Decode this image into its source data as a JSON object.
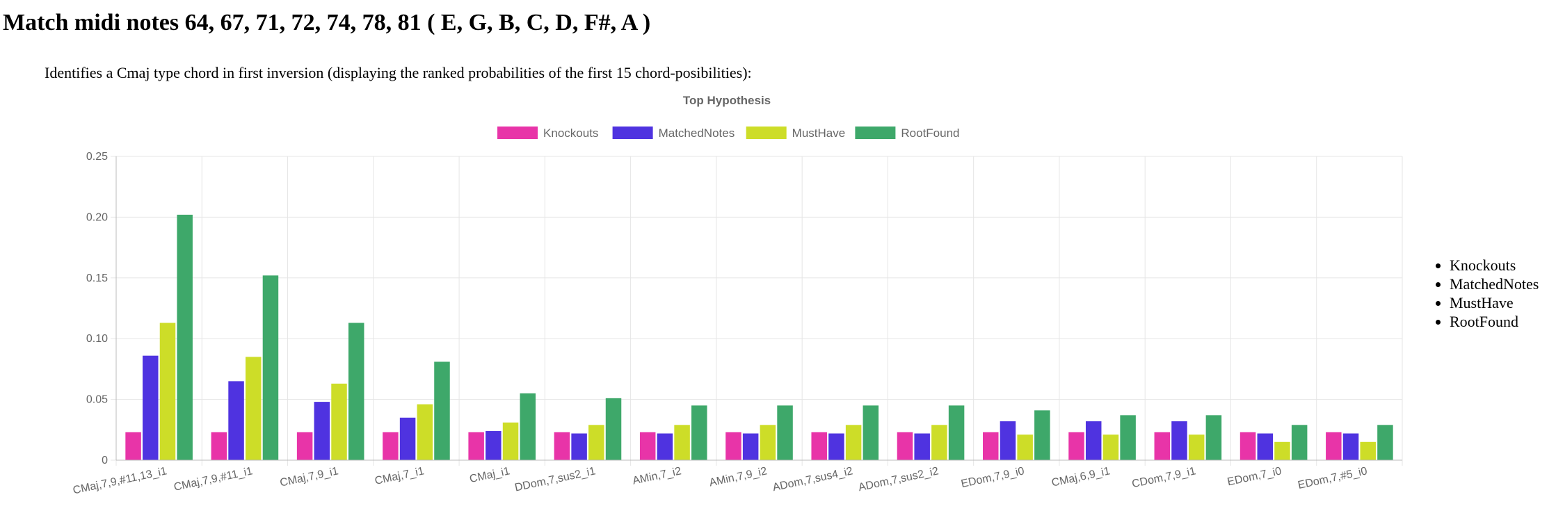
{
  "page": {
    "heading": "Match midi notes 64, 67, 71, 72, 74, 78, 81 ( E, G, B, C, D, F#, A )",
    "description": "Identifies a Cmaj type chord in first inversion (displaying the ranked probabilities of the first 15 chord-posibilities):",
    "legend_list": [
      "Knockouts",
      "MatchedNotes",
      "MustHave",
      "RootFound"
    ]
  },
  "chart_data": {
    "type": "bar",
    "title": "Top Hypothesis",
    "xlabel": "",
    "ylabel": "",
    "ylim": [
      0,
      0.25
    ],
    "yticks": [
      "0",
      "0.05",
      "0.10",
      "0.15",
      "0.20",
      "0.25"
    ],
    "grid": true,
    "legend_position": "top-center",
    "categories": [
      "CMaj,7,9,#11,13_i1",
      "CMaj,7,9,#11_i1",
      "CMaj,7,9_i1",
      "CMaj,7_i1",
      "CMaj_i1",
      "DDom,7,sus2_i1",
      "AMin,7_i2",
      "AMin,7,9_i2",
      "ADom,7,sus4_i2",
      "ADom,7,sus2_i2",
      "EDom,7,9_i0",
      "CMaj,6,9_i1",
      "CDom,7,9_i1",
      "EDom,7_i0",
      "EDom,7,#5_i0"
    ],
    "series": [
      {
        "name": "Knockouts",
        "color": "#e834a8",
        "values": [
          0.023,
          0.023,
          0.023,
          0.023,
          0.023,
          0.023,
          0.023,
          0.023,
          0.023,
          0.023,
          0.023,
          0.023,
          0.023,
          0.023,
          0.023
        ]
      },
      {
        "name": "MatchedNotes",
        "color": "#4f33e0",
        "values": [
          0.086,
          0.065,
          0.048,
          0.035,
          0.024,
          0.022,
          0.022,
          0.022,
          0.022,
          0.022,
          0.032,
          0.032,
          0.032,
          0.022,
          0.022
        ]
      },
      {
        "name": "MustHave",
        "color": "#cddd28",
        "values": [
          0.113,
          0.085,
          0.063,
          0.046,
          0.031,
          0.029,
          0.029,
          0.029,
          0.029,
          0.029,
          0.021,
          0.021,
          0.021,
          0.015,
          0.015
        ]
      },
      {
        "name": "RootFound",
        "color": "#3ea86a",
        "values": [
          0.202,
          0.152,
          0.113,
          0.081,
          0.055,
          0.051,
          0.045,
          0.045,
          0.045,
          0.045,
          0.041,
          0.037,
          0.037,
          0.029,
          0.029
        ]
      }
    ]
  }
}
